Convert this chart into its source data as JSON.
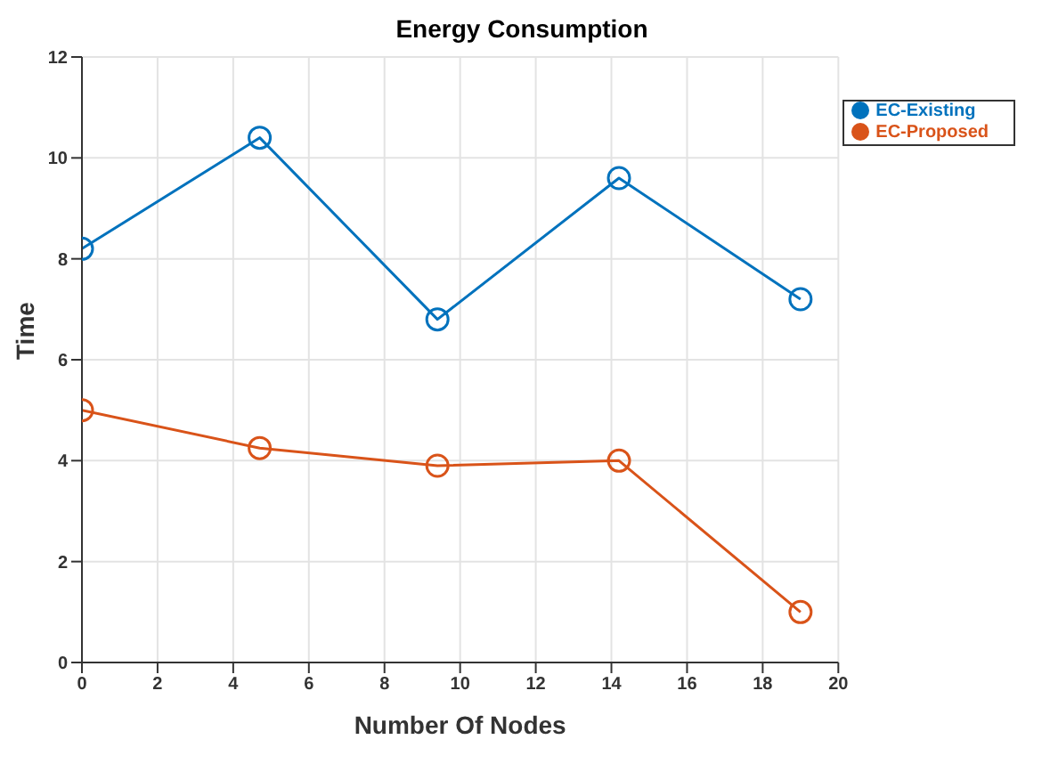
{
  "chart_data": {
    "type": "line",
    "title": "Energy Consumption",
    "xlabel": "Number Of Nodes",
    "ylabel": "Time",
    "x": [
      0,
      4.7,
      9.4,
      14.2,
      19
    ],
    "series": [
      {
        "name": "EC-Existing",
        "color": "#0072bd",
        "values": [
          8.2,
          10.4,
          6.8,
          9.6,
          7.2
        ]
      },
      {
        "name": "EC-Proposed",
        "color": "#d95319",
        "values": [
          5.0,
          4.25,
          3.9,
          4.0,
          1.0
        ]
      }
    ],
    "xlim": [
      0,
      20
    ],
    "xticks": [
      0,
      2,
      4,
      6,
      8,
      10,
      12,
      14,
      16,
      18,
      20
    ],
    "ylim": [
      0,
      12
    ],
    "yticks": [
      0,
      2,
      4,
      6,
      8,
      10,
      12
    ],
    "grid": true,
    "legend": "top right",
    "marker": "circle",
    "line_style": "solid"
  }
}
